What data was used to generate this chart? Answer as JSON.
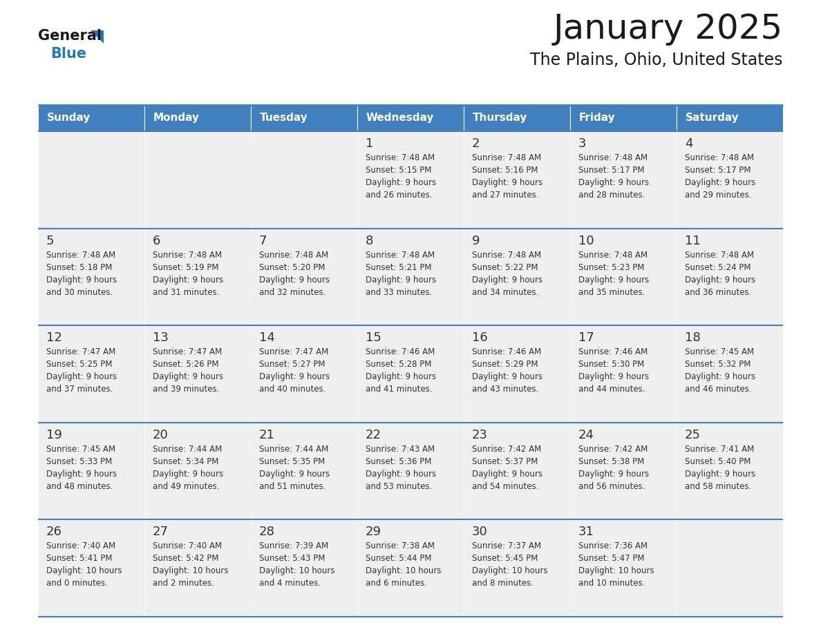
{
  "title": "January 2025",
  "subtitle": "The Plains, Ohio, United States",
  "days_of_week": [
    "Sunday",
    "Monday",
    "Tuesday",
    "Wednesday",
    "Thursday",
    "Friday",
    "Saturday"
  ],
  "header_bg": "#4080bf",
  "header_text_color": "#ffffff",
  "cell_bg": "#efefef",
  "day_number_color": "#333333",
  "text_color": "#333333",
  "border_color": "#4080bf",
  "logo_blue": "#2678c2",
  "logo_black": "#1a1a1a",
  "weeks": [
    [
      {
        "day": null,
        "info": null
      },
      {
        "day": null,
        "info": null
      },
      {
        "day": null,
        "info": null
      },
      {
        "day": 1,
        "info": "Sunrise: 7:48 AM\nSunset: 5:15 PM\nDaylight: 9 hours\nand 26 minutes."
      },
      {
        "day": 2,
        "info": "Sunrise: 7:48 AM\nSunset: 5:16 PM\nDaylight: 9 hours\nand 27 minutes."
      },
      {
        "day": 3,
        "info": "Sunrise: 7:48 AM\nSunset: 5:17 PM\nDaylight: 9 hours\nand 28 minutes."
      },
      {
        "day": 4,
        "info": "Sunrise: 7:48 AM\nSunset: 5:17 PM\nDaylight: 9 hours\nand 29 minutes."
      }
    ],
    [
      {
        "day": 5,
        "info": "Sunrise: 7:48 AM\nSunset: 5:18 PM\nDaylight: 9 hours\nand 30 minutes."
      },
      {
        "day": 6,
        "info": "Sunrise: 7:48 AM\nSunset: 5:19 PM\nDaylight: 9 hours\nand 31 minutes."
      },
      {
        "day": 7,
        "info": "Sunrise: 7:48 AM\nSunset: 5:20 PM\nDaylight: 9 hours\nand 32 minutes."
      },
      {
        "day": 8,
        "info": "Sunrise: 7:48 AM\nSunset: 5:21 PM\nDaylight: 9 hours\nand 33 minutes."
      },
      {
        "day": 9,
        "info": "Sunrise: 7:48 AM\nSunset: 5:22 PM\nDaylight: 9 hours\nand 34 minutes."
      },
      {
        "day": 10,
        "info": "Sunrise: 7:48 AM\nSunset: 5:23 PM\nDaylight: 9 hours\nand 35 minutes."
      },
      {
        "day": 11,
        "info": "Sunrise: 7:48 AM\nSunset: 5:24 PM\nDaylight: 9 hours\nand 36 minutes."
      }
    ],
    [
      {
        "day": 12,
        "info": "Sunrise: 7:47 AM\nSunset: 5:25 PM\nDaylight: 9 hours\nand 37 minutes."
      },
      {
        "day": 13,
        "info": "Sunrise: 7:47 AM\nSunset: 5:26 PM\nDaylight: 9 hours\nand 39 minutes."
      },
      {
        "day": 14,
        "info": "Sunrise: 7:47 AM\nSunset: 5:27 PM\nDaylight: 9 hours\nand 40 minutes."
      },
      {
        "day": 15,
        "info": "Sunrise: 7:46 AM\nSunset: 5:28 PM\nDaylight: 9 hours\nand 41 minutes."
      },
      {
        "day": 16,
        "info": "Sunrise: 7:46 AM\nSunset: 5:29 PM\nDaylight: 9 hours\nand 43 minutes."
      },
      {
        "day": 17,
        "info": "Sunrise: 7:46 AM\nSunset: 5:30 PM\nDaylight: 9 hours\nand 44 minutes."
      },
      {
        "day": 18,
        "info": "Sunrise: 7:45 AM\nSunset: 5:32 PM\nDaylight: 9 hours\nand 46 minutes."
      }
    ],
    [
      {
        "day": 19,
        "info": "Sunrise: 7:45 AM\nSunset: 5:33 PM\nDaylight: 9 hours\nand 48 minutes."
      },
      {
        "day": 20,
        "info": "Sunrise: 7:44 AM\nSunset: 5:34 PM\nDaylight: 9 hours\nand 49 minutes."
      },
      {
        "day": 21,
        "info": "Sunrise: 7:44 AM\nSunset: 5:35 PM\nDaylight: 9 hours\nand 51 minutes."
      },
      {
        "day": 22,
        "info": "Sunrise: 7:43 AM\nSunset: 5:36 PM\nDaylight: 9 hours\nand 53 minutes."
      },
      {
        "day": 23,
        "info": "Sunrise: 7:42 AM\nSunset: 5:37 PM\nDaylight: 9 hours\nand 54 minutes."
      },
      {
        "day": 24,
        "info": "Sunrise: 7:42 AM\nSunset: 5:38 PM\nDaylight: 9 hours\nand 56 minutes."
      },
      {
        "day": 25,
        "info": "Sunrise: 7:41 AM\nSunset: 5:40 PM\nDaylight: 9 hours\nand 58 minutes."
      }
    ],
    [
      {
        "day": 26,
        "info": "Sunrise: 7:40 AM\nSunset: 5:41 PM\nDaylight: 10 hours\nand 0 minutes."
      },
      {
        "day": 27,
        "info": "Sunrise: 7:40 AM\nSunset: 5:42 PM\nDaylight: 10 hours\nand 2 minutes."
      },
      {
        "day": 28,
        "info": "Sunrise: 7:39 AM\nSunset: 5:43 PM\nDaylight: 10 hours\nand 4 minutes."
      },
      {
        "day": 29,
        "info": "Sunrise: 7:38 AM\nSunset: 5:44 PM\nDaylight: 10 hours\nand 6 minutes."
      },
      {
        "day": 30,
        "info": "Sunrise: 7:37 AM\nSunset: 5:45 PM\nDaylight: 10 hours\nand 8 minutes."
      },
      {
        "day": 31,
        "info": "Sunrise: 7:36 AM\nSunset: 5:47 PM\nDaylight: 10 hours\nand 10 minutes."
      },
      {
        "day": null,
        "info": null
      }
    ]
  ]
}
